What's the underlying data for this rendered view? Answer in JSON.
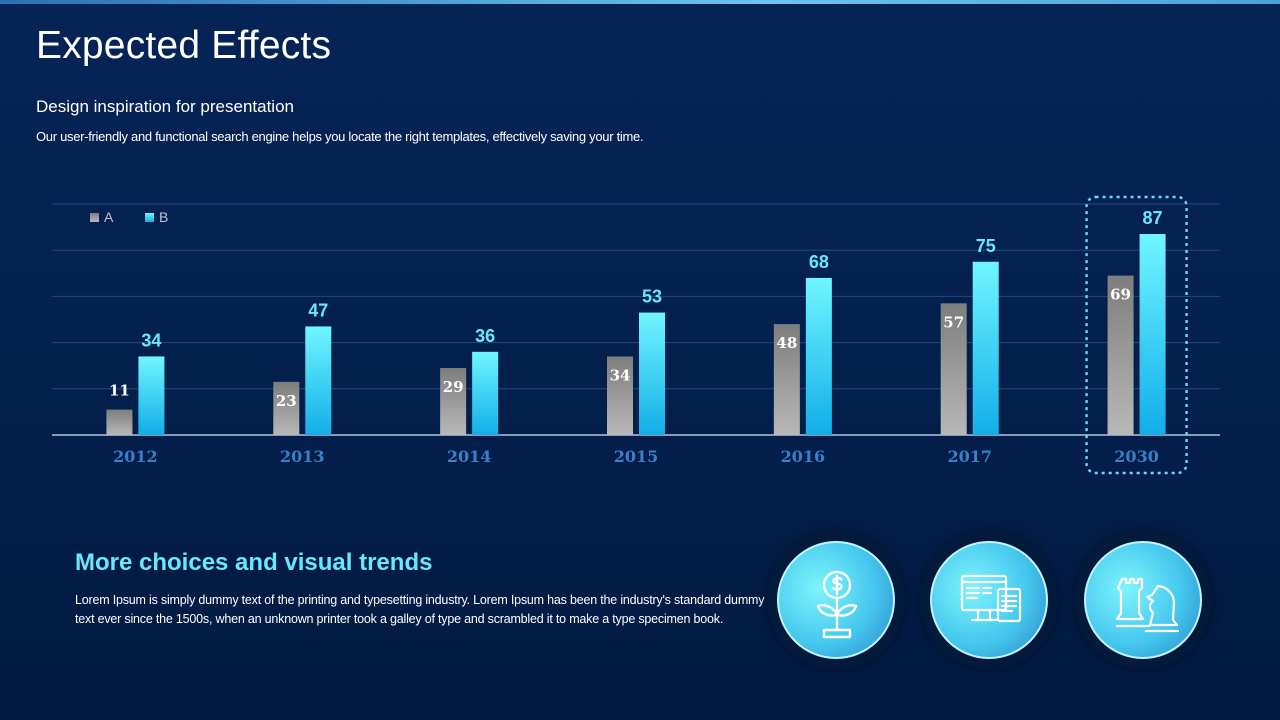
{
  "slide": {
    "title": "Expected Effects",
    "subtitle": "Design inspiration for presentation",
    "description": "Our user-friendly and functional search engine helps you locate the right templates, effectively saving your time."
  },
  "chart_data": {
    "type": "bar",
    "categories": [
      "2012",
      "2013",
      "2014",
      "2015",
      "2016",
      "2017",
      "2030"
    ],
    "series": [
      {
        "name": "A",
        "values": [
          11,
          23,
          29,
          34,
          48,
          57,
          69
        ],
        "color": "#9a9a9a"
      },
      {
        "name": "B",
        "values": [
          34,
          47,
          36,
          53,
          68,
          75,
          87
        ],
        "color": "#33c7f2"
      }
    ],
    "ylim": [
      0,
      100
    ],
    "grid": true,
    "legend": "top-left",
    "highlighted_category": "2030",
    "colors": {
      "b_label": "#6ce6fb",
      "category_label": "#3b7fc6",
      "highlight_border": "#6fd6f7"
    }
  },
  "bottom": {
    "heading": "More choices and visual trends",
    "body": "Lorem Ipsum is simply dummy text of the printing and typesetting industry. Lorem Ipsum has been the industry's standard dummy text ever since the 1500s, when an unknown printer took a galley of type and scrambled it to make a type specimen book."
  },
  "icons": [
    "money-plant-icon",
    "computer-documents-icon",
    "chess-pieces-icon"
  ],
  "colors": {
    "background": "#031f4c",
    "accent": "#6ce6fb"
  }
}
